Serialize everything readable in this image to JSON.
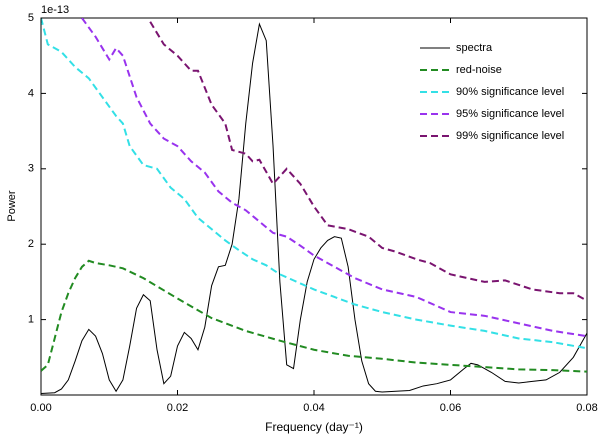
{
  "chart_data": {
    "type": "line",
    "xlabel": "Frequency (day⁻¹)",
    "ylabel": "Power",
    "y_multiplier": "1e-13",
    "xlim": [
      0,
      0.08
    ],
    "ylim": [
      0,
      5
    ],
    "xticks": [
      {
        "value": 0,
        "label": "0.00"
      },
      {
        "value": 0.02,
        "label": "0.02"
      },
      {
        "value": 0.04,
        "label": "0.04"
      },
      {
        "value": 0.06,
        "label": "0.06"
      },
      {
        "value": 0.08,
        "label": "0.08"
      }
    ],
    "yticks": [
      1,
      2,
      3,
      4,
      5
    ],
    "legend": "upper right",
    "series": [
      {
        "name": "spectra",
        "color": "#000000",
        "style": "solid",
        "x": [
          0,
          0.002,
          0.003,
          0.004,
          0.005,
          0.006,
          0.007,
          0.008,
          0.009,
          0.01,
          0.011,
          0.012,
          0.013,
          0.014,
          0.015,
          0.016,
          0.017,
          0.018,
          0.019,
          0.02,
          0.021,
          0.022,
          0.023,
          0.024,
          0.025,
          0.026,
          0.027,
          0.028,
          0.029,
          0.03,
          0.031,
          0.032,
          0.033,
          0.034,
          0.035,
          0.036,
          0.037,
          0.038,
          0.039,
          0.04,
          0.041,
          0.042,
          0.043,
          0.044,
          0.045,
          0.046,
          0.047,
          0.048,
          0.049,
          0.05,
          0.052,
          0.054,
          0.056,
          0.058,
          0.06,
          0.062,
          0.063,
          0.064,
          0.066,
          0.068,
          0.07,
          0.072,
          0.074,
          0.076,
          0.078,
          0.08
        ],
        "values": [
          0.02,
          0.03,
          0.08,
          0.2,
          0.45,
          0.72,
          0.87,
          0.78,
          0.55,
          0.2,
          0.05,
          0.2,
          0.65,
          1.15,
          1.33,
          1.25,
          0.6,
          0.15,
          0.25,
          0.65,
          0.83,
          0.75,
          0.6,
          0.9,
          1.45,
          1.7,
          1.72,
          2.0,
          2.6,
          3.6,
          4.4,
          4.92,
          4.7,
          3.3,
          1.5,
          0.4,
          0.35,
          1.0,
          1.5,
          1.8,
          1.95,
          2.05,
          2.1,
          2.08,
          1.7,
          1.0,
          0.45,
          0.15,
          0.05,
          0.04,
          0.05,
          0.06,
          0.12,
          0.15,
          0.2,
          0.35,
          0.42,
          0.4,
          0.3,
          0.18,
          0.16,
          0.18,
          0.2,
          0.3,
          0.5,
          0.82
        ]
      },
      {
        "name": "red-noise",
        "color": "#228b22",
        "style": "dashed",
        "x": [
          0,
          0.001,
          0.002,
          0.003,
          0.004,
          0.005,
          0.006,
          0.007,
          0.008,
          0.01,
          0.012,
          0.015,
          0.02,
          0.025,
          0.03,
          0.035,
          0.04,
          0.045,
          0.05,
          0.055,
          0.06,
          0.065,
          0.07,
          0.075,
          0.08
        ],
        "values": [
          0.32,
          0.4,
          0.75,
          1.1,
          1.35,
          1.55,
          1.7,
          1.78,
          1.75,
          1.72,
          1.68,
          1.55,
          1.28,
          1.02,
          0.85,
          0.72,
          0.6,
          0.52,
          0.48,
          0.43,
          0.4,
          0.37,
          0.34,
          0.33,
          0.31
        ]
      },
      {
        "name": "90% significance level",
        "color": "#33e0e6",
        "style": "dashed",
        "x": [
          0,
          0.001,
          0.003,
          0.005,
          0.007,
          0.009,
          0.011,
          0.012,
          0.013,
          0.015,
          0.017,
          0.019,
          0.021,
          0.023,
          0.025,
          0.027,
          0.029,
          0.031,
          0.033,
          0.035,
          0.037,
          0.04,
          0.043,
          0.046,
          0.05,
          0.055,
          0.06,
          0.065,
          0.07,
          0.075,
          0.08
        ],
        "values": [
          5.0,
          4.65,
          4.55,
          4.35,
          4.2,
          3.95,
          3.7,
          3.6,
          3.3,
          3.05,
          3.0,
          2.75,
          2.6,
          2.35,
          2.2,
          2.05,
          1.92,
          1.8,
          1.72,
          1.6,
          1.52,
          1.4,
          1.3,
          1.2,
          1.1,
          1.0,
          0.92,
          0.85,
          0.75,
          0.7,
          0.62
        ]
      },
      {
        "name": "95% significance level",
        "color": "#9933ee",
        "style": "dashed",
        "x": [
          0.006,
          0.008,
          0.01,
          0.011,
          0.012,
          0.014,
          0.016,
          0.018,
          0.02,
          0.022,
          0.024,
          0.026,
          0.028,
          0.03,
          0.032,
          0.034,
          0.036,
          0.038,
          0.04,
          0.043,
          0.046,
          0.05,
          0.055,
          0.06,
          0.065,
          0.07,
          0.075,
          0.08
        ],
        "values": [
          5.0,
          4.75,
          4.45,
          4.6,
          4.5,
          3.95,
          3.6,
          3.4,
          3.3,
          3.1,
          2.95,
          2.7,
          2.55,
          2.45,
          2.3,
          2.15,
          2.1,
          1.98,
          1.85,
          1.7,
          1.55,
          1.4,
          1.3,
          1.1,
          1.05,
          0.95,
          0.85,
          0.78
        ]
      },
      {
        "name": "99% significance level",
        "color": "#7a1470",
        "style": "dashed",
        "x": [
          0.016,
          0.018,
          0.02,
          0.022,
          0.023,
          0.025,
          0.027,
          0.028,
          0.03,
          0.031,
          0.032,
          0.034,
          0.036,
          0.038,
          0.04,
          0.042,
          0.045,
          0.048,
          0.05,
          0.052,
          0.055,
          0.057,
          0.06,
          0.065,
          0.068,
          0.072,
          0.076,
          0.078,
          0.08
        ],
        "values": [
          4.95,
          4.65,
          4.5,
          4.3,
          4.3,
          3.85,
          3.6,
          3.25,
          3.2,
          3.1,
          3.12,
          2.8,
          3.0,
          2.8,
          2.5,
          2.25,
          2.2,
          2.1,
          1.95,
          1.9,
          1.8,
          1.75,
          1.6,
          1.5,
          1.52,
          1.4,
          1.35,
          1.35,
          1.25
        ]
      }
    ]
  }
}
